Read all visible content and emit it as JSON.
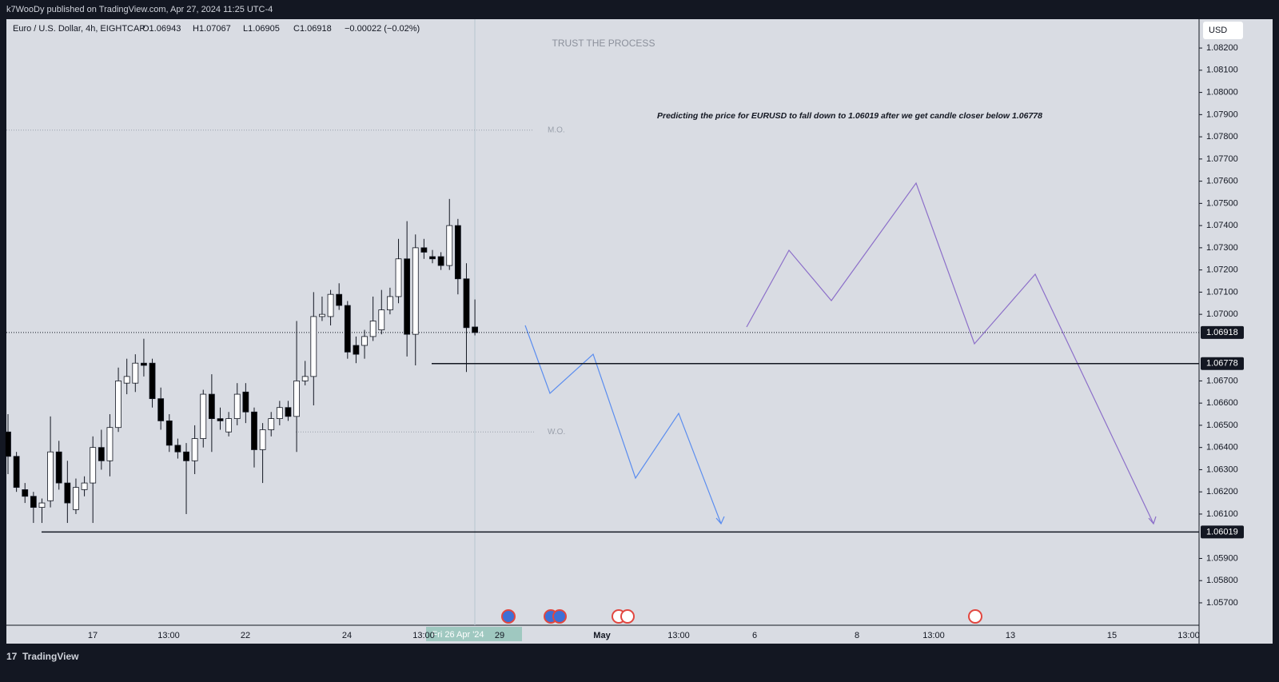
{
  "header": {
    "publisher": "k7WooDy published on TradingView.com, Apr 27, 2024 11:25 UTC-4",
    "footer": "TradingView"
  },
  "chart_data": {
    "type": "candlestick",
    "symbol": "Euro / U.S. Dollar, 4h, EIGHTCAP",
    "ohlc_legend": [
      "O1.06943",
      "H1.07067",
      "L1.06905",
      "C1.06918",
      "−0.00022 (−0.02%)"
    ],
    "watermark": "TRUST THE PROCESS",
    "annotation": "Predicting the price for EURUSD to fall down to 1.06019 after we get candle closer below 1.06778",
    "currency": "USD",
    "crosshair_label": "Fri 26 Apr '24",
    "up_color": "#ffffff",
    "down_color": "#000000",
    "open": [
      1.0647,
      1.0636,
      1.0621,
      1.0618,
      1.0613,
      1.0616,
      1.0638,
      1.0624,
      1.0612,
      1.0621,
      1.0624,
      1.064,
      1.0634,
      1.0649,
      1.0669,
      1.0669,
      1.0678,
      1.0678,
      1.0662,
      1.0652,
      1.0641,
      1.0638,
      1.0634,
      1.0644,
      1.0664,
      1.0653,
      1.0647,
      1.0653,
      1.0665,
      1.0656,
      1.0639,
      1.0648,
      1.0653,
      1.0658,
      1.0654,
      1.067,
      1.0672,
      1.0699,
      1.0699,
      1.0709,
      1.0704,
      1.0686,
      1.0686,
      1.069,
      1.0693,
      1.0702,
      1.0708,
      1.0725,
      1.0691,
      1.073,
      1.0726,
      1.0726,
      1.0722,
      1.074,
      1.0716,
      1.06943
    ],
    "high": [
      1.0655,
      1.0638,
      1.0624,
      1.062,
      1.0617,
      1.0654,
      1.0643,
      1.0634,
      1.0626,
      1.0627,
      1.0645,
      1.0648,
      1.0655,
      1.0676,
      1.068,
      1.0682,
      1.0689,
      1.068,
      1.0667,
      1.0655,
      1.0644,
      1.0642,
      1.065,
      1.0666,
      1.0673,
      1.0658,
      1.0656,
      1.0669,
      1.0669,
      1.0658,
      1.0651,
      1.0656,
      1.0661,
      1.0661,
      1.0697,
      1.0679,
      1.071,
      1.0708,
      1.0711,
      1.0714,
      1.0706,
      1.069,
      1.0693,
      1.0708,
      1.0711,
      1.0712,
      1.0734,
      1.0742,
      1.0736,
      1.0734,
      1.0729,
      1.0728,
      1.0752,
      1.0743,
      1.0723,
      1.07067
    ],
    "low": [
      1.0628,
      1.062,
      1.0615,
      1.0606,
      1.0606,
      1.0613,
      1.0621,
      1.0606,
      1.061,
      1.0618,
      1.0606,
      1.063,
      1.0627,
      1.0647,
      1.0664,
      1.0665,
      1.0672,
      1.0658,
      1.0648,
      1.0638,
      1.0635,
      1.061,
      1.0628,
      1.064,
      1.0638,
      1.0648,
      1.0645,
      1.065,
      1.0651,
      1.0631,
      1.0624,
      1.0645,
      1.065,
      1.0652,
      1.0638,
      1.0668,
      1.0659,
      1.0697,
      1.0695,
      1.0702,
      1.068,
      1.0678,
      1.068,
      1.0688,
      1.0691,
      1.07,
      1.0705,
      1.0681,
      1.0677,
      1.0725,
      1.0723,
      1.072,
      1.072,
      1.0709,
      1.0674,
      1.06905
    ],
    "close": [
      1.0636,
      1.0622,
      1.0618,
      1.0613,
      1.0615,
      1.0638,
      1.0624,
      1.0615,
      1.0622,
      1.0624,
      1.064,
      1.0634,
      1.0649,
      1.067,
      1.0672,
      1.0678,
      1.0677,
      1.0662,
      1.0652,
      1.0641,
      1.0638,
      1.0634,
      1.0644,
      1.0664,
      1.0653,
      1.0652,
      1.0653,
      1.0664,
      1.0656,
      1.0639,
      1.0648,
      1.0653,
      1.0658,
      1.0654,
      1.067,
      1.0672,
      1.0699,
      1.07,
      1.0709,
      1.0704,
      1.0683,
      1.0682,
      1.069,
      1.0697,
      1.0702,
      1.0708,
      1.0725,
      1.0691,
      1.073,
      1.0728,
      1.0725,
      1.0722,
      1.074,
      1.0716,
      1.0694,
      1.06918
    ],
    "levels": [
      {
        "value": 1.06918,
        "style": "dotted"
      },
      {
        "value": 1.06778,
        "style": "solid"
      },
      {
        "value": 1.06019,
        "style": "solid"
      },
      {
        "label": "M.O.",
        "value": 1.0783,
        "style": "dotted"
      },
      {
        "label": "W.O.",
        "value": 1.0647,
        "style": "dotted"
      }
    ],
    "xticks": [
      "17",
      "13:00",
      "22",
      "24",
      "13:00",
      "29",
      "May",
      "13:00",
      "6",
      "8",
      "13:00",
      "13",
      "15",
      "13:00"
    ],
    "ylim": [
      1.05599,
      1.0833
    ],
    "yticks": [
      {
        "value": 1.082,
        "label": "1.08200"
      },
      {
        "value": 1.081,
        "label": "1.08100"
      },
      {
        "value": 1.08,
        "label": "1.08000"
      },
      {
        "value": 1.079,
        "label": "1.07900"
      },
      {
        "value": 1.078,
        "label": "1.07800"
      },
      {
        "value": 1.077,
        "label": "1.07700"
      },
      {
        "value": 1.076,
        "label": "1.07600"
      },
      {
        "value": 1.075,
        "label": "1.07500"
      },
      {
        "value": 1.074,
        "label": "1.07400"
      },
      {
        "value": 1.073,
        "label": "1.07300"
      },
      {
        "value": 1.072,
        "label": "1.07200"
      },
      {
        "value": 1.071,
        "label": "1.07100"
      },
      {
        "value": 1.07,
        "label": "1.07000"
      },
      {
        "value": 1.067,
        "label": "1.06700"
      },
      {
        "value": 1.066,
        "label": "1.06600"
      },
      {
        "value": 1.065,
        "label": "1.06500"
      },
      {
        "value": 1.064,
        "label": "1.06400"
      },
      {
        "value": 1.063,
        "label": "1.06300"
      },
      {
        "value": 1.062,
        "label": "1.06200"
      },
      {
        "value": 1.061,
        "label": "1.06100"
      },
      {
        "value": 1.059,
        "label": "1.05900"
      },
      {
        "value": 1.058,
        "label": "1.05800"
      },
      {
        "value": 1.057,
        "label": "1.05700"
      }
    ]
  }
}
